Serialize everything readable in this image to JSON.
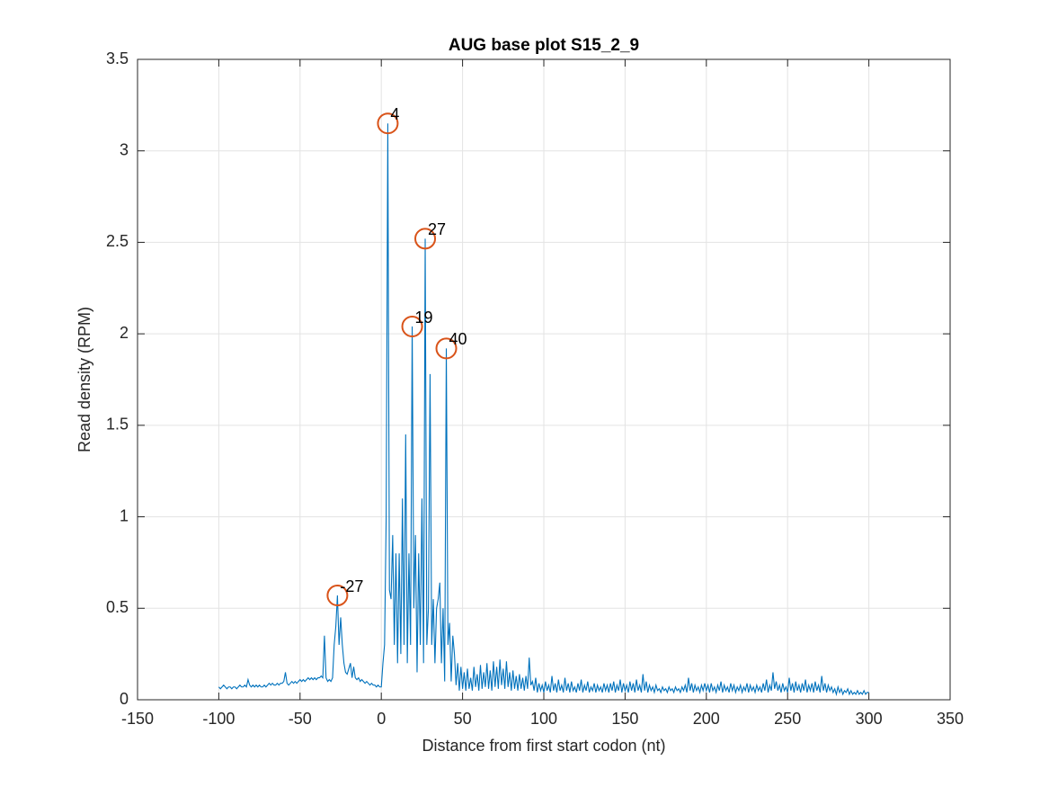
{
  "chart_data": {
    "type": "line",
    "title": "AUG base plot S15_2_9",
    "x_label": "Distance from first start codon (nt)",
    "y_label": "Read density (RPM)",
    "xlim": [
      -150,
      350
    ],
    "xticks": [
      -150,
      -100,
      -50,
      0,
      50,
      100,
      150,
      200,
      250,
      300,
      350
    ],
    "ylim": [
      0,
      3.5
    ],
    "yticks": [
      0,
      0.5,
      1,
      1.5,
      2,
      2.5,
      3,
      3.5
    ],
    "grid": true,
    "color": "#0072bd",
    "x": [
      -100,
      -99,
      -98,
      -97,
      -96,
      -95,
      -94,
      -93,
      -92,
      -91,
      -90,
      -89,
      -88,
      -87,
      -86,
      -85,
      -84,
      -83,
      -82,
      -81,
      -80,
      -79,
      -78,
      -77,
      -76,
      -75,
      -74,
      -73,
      -72,
      -71,
      -70,
      -69,
      -68,
      -67,
      -66,
      -65,
      -64,
      -63,
      -62,
      -61,
      -60,
      -59,
      -58,
      -57,
      -56,
      -55,
      -54,
      -53,
      -52,
      -51,
      -50,
      -49,
      -48,
      -47,
      -46,
      -45,
      -44,
      -43,
      -42,
      -41,
      -40,
      -39,
      -38,
      -37,
      -36,
      -35,
      -34,
      -33,
      -32,
      -31,
      -30,
      -29,
      -28,
      -27,
      -26,
      -25,
      -24,
      -23,
      -22,
      -21,
      -20,
      -19,
      -18,
      -17,
      -16,
      -15,
      -14,
      -13,
      -12,
      -11,
      -10,
      -9,
      -8,
      -7,
      -6,
      -5,
      -4,
      -3,
      -2,
      -1,
      0,
      1,
      2,
      3,
      4,
      5,
      6,
      7,
      8,
      9,
      10,
      11,
      12,
      13,
      14,
      15,
      16,
      17,
      18,
      19,
      20,
      21,
      22,
      23,
      24,
      25,
      26,
      27,
      28,
      29,
      30,
      31,
      32,
      33,
      34,
      35,
      36,
      37,
      38,
      39,
      40,
      41,
      42,
      43,
      44,
      45,
      46,
      47,
      48,
      49,
      50,
      51,
      52,
      53,
      54,
      55,
      56,
      57,
      58,
      59,
      60,
      61,
      62,
      63,
      64,
      65,
      66,
      67,
      68,
      69,
      70,
      71,
      72,
      73,
      74,
      75,
      76,
      77,
      78,
      79,
      80,
      81,
      82,
      83,
      84,
      85,
      86,
      87,
      88,
      89,
      90,
      91,
      92,
      93,
      94,
      95,
      96,
      97,
      98,
      99,
      100,
      101,
      102,
      103,
      104,
      105,
      106,
      107,
      108,
      109,
      110,
      111,
      112,
      113,
      114,
      115,
      116,
      117,
      118,
      119,
      120,
      121,
      122,
      123,
      124,
      125,
      126,
      127,
      128,
      129,
      130,
      131,
      132,
      133,
      134,
      135,
      136,
      137,
      138,
      139,
      140,
      141,
      142,
      143,
      144,
      145,
      146,
      147,
      148,
      149,
      150,
      151,
      152,
      153,
      154,
      155,
      156,
      157,
      158,
      159,
      160,
      161,
      162,
      163,
      164,
      165,
      166,
      167,
      168,
      169,
      170,
      171,
      172,
      173,
      174,
      175,
      176,
      177,
      178,
      179,
      180,
      181,
      182,
      183,
      184,
      185,
      186,
      187,
      188,
      189,
      190,
      191,
      192,
      193,
      194,
      195,
      196,
      197,
      198,
      199,
      200,
      201,
      202,
      203,
      204,
      205,
      206,
      207,
      208,
      209,
      210,
      211,
      212,
      213,
      214,
      215,
      216,
      217,
      218,
      219,
      220,
      221,
      222,
      223,
      224,
      225,
      226,
      227,
      228,
      229,
      230,
      231,
      232,
      233,
      234,
      235,
      236,
      237,
      238,
      239,
      240,
      241,
      242,
      243,
      244,
      245,
      246,
      247,
      248,
      249,
      250,
      251,
      252,
      253,
      254,
      255,
      256,
      257,
      258,
      259,
      260,
      261,
      262,
      263,
      264,
      265,
      266,
      267,
      268,
      269,
      270,
      271,
      272,
      273,
      274,
      275,
      276,
      277,
      278,
      279,
      280,
      281,
      282,
      283,
      284,
      285,
      286,
      287,
      288,
      289,
      290,
      291,
      292,
      293,
      294,
      295,
      296,
      297,
      298,
      299,
      300
    ],
    "values": [
      0.07,
      0.06,
      0.07,
      0.08,
      0.07,
      0.06,
      0.07,
      0.07,
      0.06,
      0.07,
      0.07,
      0.06,
      0.07,
      0.08,
      0.07,
      0.07,
      0.08,
      0.07,
      0.11,
      0.08,
      0.07,
      0.08,
      0.07,
      0.08,
      0.07,
      0.08,
      0.07,
      0.07,
      0.08,
      0.07,
      0.08,
      0.09,
      0.08,
      0.09,
      0.08,
      0.08,
      0.09,
      0.08,
      0.09,
      0.09,
      0.1,
      0.15,
      0.09,
      0.08,
      0.09,
      0.1,
      0.09,
      0.1,
      0.09,
      0.1,
      0.11,
      0.1,
      0.11,
      0.1,
      0.11,
      0.12,
      0.11,
      0.12,
      0.11,
      0.12,
      0.11,
      0.12,
      0.12,
      0.13,
      0.12,
      0.35,
      0.12,
      0.1,
      0.11,
      0.1,
      0.12,
      0.3,
      0.4,
      0.57,
      0.3,
      0.45,
      0.3,
      0.2,
      0.15,
      0.14,
      0.17,
      0.2,
      0.12,
      0.18,
      0.12,
      0.11,
      0.12,
      0.1,
      0.11,
      0.1,
      0.09,
      0.1,
      0.09,
      0.08,
      0.09,
      0.08,
      0.08,
      0.07,
      0.08,
      0.07,
      0.07,
      0.2,
      0.3,
      1.0,
      3.15,
      0.6,
      0.55,
      0.9,
      0.3,
      0.8,
      0.2,
      0.8,
      0.25,
      1.1,
      0.3,
      1.45,
      0.2,
      0.8,
      0.3,
      2.04,
      0.5,
      0.9,
      0.15,
      0.8,
      0.3,
      1.1,
      0.2,
      2.52,
      0.3,
      0.5,
      1.78,
      0.3,
      0.55,
      0.2,
      0.5,
      0.55,
      0.64,
      0.2,
      0.5,
      0.1,
      1.92,
      0.3,
      0.42,
      0.1,
      0.35,
      0.25,
      0.08,
      0.2,
      0.05,
      0.18,
      0.06,
      0.15,
      0.05,
      0.17,
      0.06,
      0.12,
      0.05,
      0.18,
      0.07,
      0.14,
      0.05,
      0.19,
      0.06,
      0.15,
      0.07,
      0.2,
      0.06,
      0.16,
      0.05,
      0.21,
      0.07,
      0.18,
      0.06,
      0.22,
      0.08,
      0.17,
      0.06,
      0.21,
      0.07,
      0.15,
      0.05,
      0.16,
      0.06,
      0.13,
      0.05,
      0.14,
      0.06,
      0.12,
      0.05,
      0.13,
      0.06,
      0.23,
      0.08,
      0.1,
      0.05,
      0.12,
      0.04,
      0.09,
      0.05,
      0.08,
      0.04,
      0.1,
      0.05,
      0.08,
      0.04,
      0.13,
      0.05,
      0.09,
      0.04,
      0.11,
      0.05,
      0.08,
      0.04,
      0.12,
      0.05,
      0.09,
      0.04,
      0.1,
      0.05,
      0.07,
      0.04,
      0.09,
      0.05,
      0.11,
      0.04,
      0.08,
      0.05,
      0.1,
      0.04,
      0.07,
      0.05,
      0.09,
      0.04,
      0.08,
      0.05,
      0.07,
      0.04,
      0.09,
      0.05,
      0.08,
      0.04,
      0.09,
      0.05,
      0.1,
      0.04,
      0.08,
      0.05,
      0.11,
      0.04,
      0.09,
      0.05,
      0.08,
      0.04,
      0.1,
      0.05,
      0.09,
      0.04,
      0.11,
      0.05,
      0.08,
      0.04,
      0.14,
      0.05,
      0.1,
      0.04,
      0.08,
      0.05,
      0.07,
      0.04,
      0.08,
      0.05,
      0.06,
      0.04,
      0.07,
      0.05,
      0.06,
      0.04,
      0.07,
      0.05,
      0.06,
      0.04,
      0.07,
      0.05,
      0.06,
      0.04,
      0.07,
      0.05,
      0.08,
      0.04,
      0.12,
      0.05,
      0.09,
      0.04,
      0.08,
      0.05,
      0.07,
      0.04,
      0.08,
      0.05,
      0.09,
      0.05,
      0.08,
      0.04,
      0.09,
      0.05,
      0.07,
      0.04,
      0.08,
      0.05,
      0.1,
      0.04,
      0.08,
      0.05,
      0.07,
      0.04,
      0.09,
      0.05,
      0.08,
      0.04,
      0.07,
      0.05,
      0.08,
      0.04,
      0.07,
      0.05,
      0.09,
      0.04,
      0.08,
      0.05,
      0.07,
      0.04,
      0.08,
      0.05,
      0.07,
      0.04,
      0.09,
      0.05,
      0.11,
      0.04,
      0.08,
      0.05,
      0.15,
      0.06,
      0.1,
      0.05,
      0.08,
      0.04,
      0.09,
      0.05,
      0.07,
      0.04,
      0.12,
      0.05,
      0.09,
      0.04,
      0.1,
      0.05,
      0.08,
      0.04,
      0.09,
      0.05,
      0.11,
      0.04,
      0.08,
      0.05,
      0.09,
      0.04,
      0.1,
      0.05,
      0.08,
      0.04,
      0.13,
      0.05,
      0.09,
      0.04,
      0.08,
      0.05,
      0.07,
      0.04,
      0.06,
      0.03,
      0.07,
      0.04,
      0.06,
      0.03,
      0.05,
      0.04,
      0.06,
      0.03,
      0.05,
      0.03,
      0.04,
      0.03,
      0.05,
      0.03,
      0.04,
      0.03,
      0.05,
      0.03,
      0.04,
      0.04
    ],
    "peak_color": "#d95319",
    "peaks": [
      {
        "x": -27,
        "y": 0.57,
        "label": "-27"
      },
      {
        "x": 4,
        "y": 3.15,
        "label": "4"
      },
      {
        "x": 19,
        "y": 2.04,
        "label": "19"
      },
      {
        "x": 27,
        "y": 2.52,
        "label": "27"
      },
      {
        "x": 40,
        "y": 1.92,
        "label": "40"
      }
    ]
  }
}
